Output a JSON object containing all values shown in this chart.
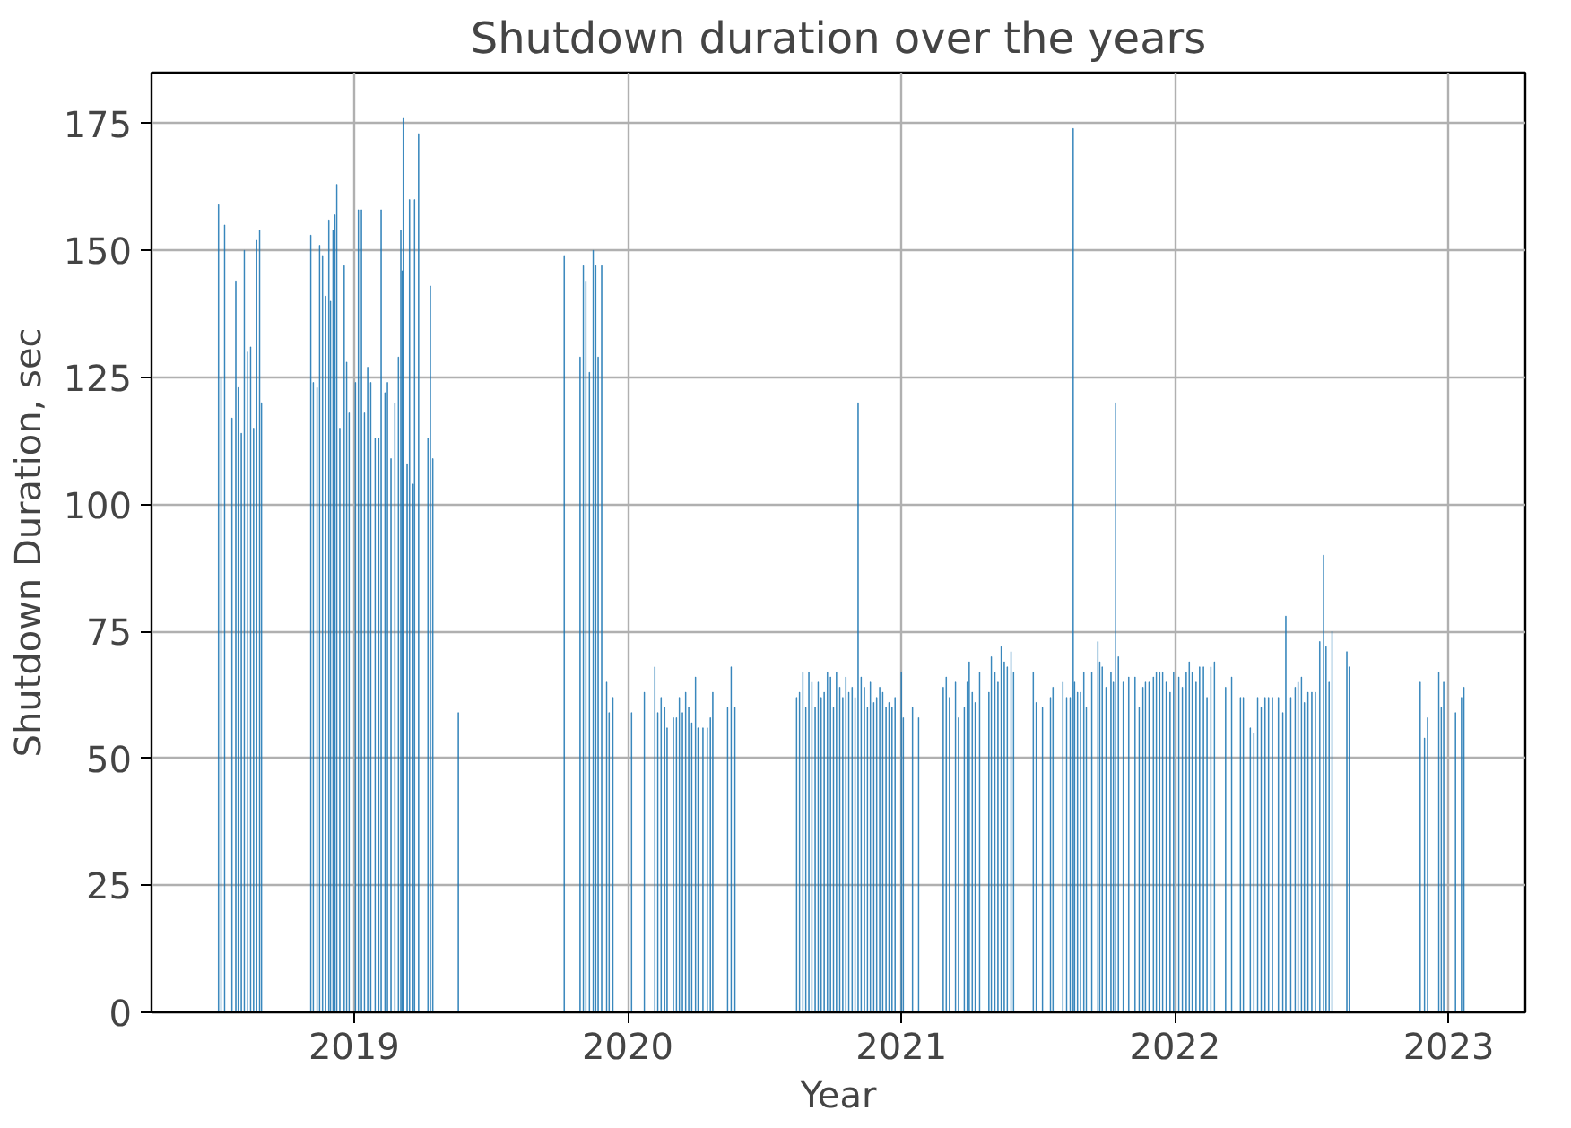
{
  "chart_data": {
    "type": "bar",
    "title": "Shutdown duration over the years",
    "xlabel": "Year",
    "ylabel": "Shutdown Duration, sec",
    "x": [
      2018.505,
      2018.514,
      2018.527,
      2018.554,
      2018.568,
      2018.577,
      2018.588,
      2018.599,
      2018.61,
      2018.622,
      2018.633,
      2018.644,
      2018.655,
      2018.662,
      2018.842,
      2018.851,
      2018.865,
      2018.874,
      2018.885,
      2018.896,
      2018.908,
      2018.914,
      2018.923,
      2018.93,
      2018.937,
      2018.948,
      2018.964,
      2018.973,
      2018.982,
      2019.005,
      2019.016,
      2019.027,
      2019.038,
      2019.05,
      2019.061,
      2019.077,
      2019.09,
      2019.099,
      2019.113,
      2019.122,
      2019.135,
      2019.149,
      2019.162,
      2019.171,
      2019.176,
      2019.18,
      2019.194,
      2019.203,
      2019.216,
      2019.221,
      2019.236,
      2019.27,
      2019.279,
      2019.288,
      2019.381,
      2019.768,
      2019.826,
      2019.838,
      2019.847,
      2019.86,
      2019.874,
      2019.883,
      2019.892,
      2019.905,
      2019.923,
      2019.932,
      2019.946,
      2020.014,
      2020.061,
      2020.099,
      2020.11,
      2020.122,
      2020.135,
      2020.144,
      2020.167,
      2020.178,
      2020.189,
      2020.2,
      2020.212,
      2020.223,
      2020.234,
      2020.248,
      2020.257,
      2020.275,
      2020.291,
      2020.302,
      2020.311,
      2020.365,
      2020.378,
      2020.392,
      2020.617,
      2020.628,
      2020.64,
      2020.651,
      2020.662,
      2020.673,
      2020.685,
      2020.696,
      2020.707,
      2020.718,
      2020.73,
      2020.741,
      2020.752,
      2020.763,
      2020.775,
      2020.786,
      2020.797,
      2020.808,
      2020.82,
      2020.831,
      2020.842,
      2020.853,
      2020.865,
      2020.876,
      2020.887,
      2020.899,
      2020.91,
      2020.921,
      2020.932,
      2020.944,
      2020.955,
      2020.966,
      2020.977,
      2021.0,
      2021.007,
      2021.041,
      2021.063,
      2021.153,
      2021.164,
      2021.176,
      2021.198,
      2021.209,
      2021.23,
      2021.241,
      2021.248,
      2021.259,
      2021.27,
      2021.286,
      2021.32,
      2021.329,
      2021.342,
      2021.353,
      2021.365,
      2021.376,
      2021.387,
      2021.401,
      2021.41,
      2021.482,
      2021.493,
      2021.516,
      2021.545,
      2021.554,
      2021.59,
      2021.604,
      2021.617,
      2021.628,
      2021.633,
      2021.644,
      2021.655,
      2021.667,
      2021.676,
      2021.696,
      2021.718,
      2021.725,
      2021.734,
      2021.748,
      2021.766,
      2021.775,
      2021.782,
      2021.793,
      2021.811,
      2021.831,
      2021.854,
      2021.869,
      2021.883,
      2021.892,
      2021.905,
      2021.921,
      2021.932,
      2021.944,
      2021.955,
      2021.968,
      2021.982,
      2021.995,
      2022.014,
      2022.027,
      2022.041,
      2022.052,
      2022.063,
      2022.077,
      2022.09,
      2022.104,
      2022.117,
      2022.131,
      2022.144,
      2022.185,
      2022.207,
      2022.239,
      2022.25,
      2022.275,
      2022.288,
      2022.302,
      2022.315,
      2022.329,
      2022.342,
      2022.356,
      2022.378,
      2022.394,
      2022.405,
      2022.423,
      2022.439,
      2022.45,
      2022.462,
      2022.473,
      2022.486,
      2022.5,
      2022.513,
      2022.529,
      2022.543,
      2022.552,
      2022.563,
      2022.574,
      2022.628,
      2022.637,
      2022.896,
      2022.912,
      2022.923,
      2022.964,
      2022.973,
      2022.982,
      2023.025,
      2023.047,
      2023.056
    ],
    "values": [
      159,
      125,
      155,
      117,
      144,
      123,
      114,
      150,
      130,
      131,
      115,
      152,
      154,
      120,
      153,
      124,
      123,
      151,
      149,
      141,
      156,
      140,
      154,
      157,
      163,
      115,
      147,
      128,
      118,
      124,
      158,
      158,
      118,
      127,
      124,
      113,
      113,
      158,
      122,
      124,
      109,
      120,
      129,
      154,
      146,
      176,
      108,
      160,
      104,
      160,
      173,
      113,
      143,
      109,
      59,
      149,
      129,
      147,
      144,
      126,
      150,
      147,
      129,
      147,
      65,
      59,
      62,
      59,
      63,
      68,
      59,
      62,
      60,
      56,
      58,
      58,
      62,
      59,
      63,
      60,
      57,
      66,
      56,
      56,
      56,
      58,
      63,
      60,
      68,
      60,
      62,
      63,
      67,
      60,
      67,
      65,
      60,
      65,
      62,
      63,
      67,
      66,
      60,
      67,
      64,
      62,
      66,
      63,
      64,
      62,
      120,
      66,
      64,
      60,
      65,
      61,
      62,
      64,
      63,
      60,
      61,
      60,
      62,
      67,
      58,
      60,
      58,
      64,
      66,
      62,
      65,
      58,
      60,
      65,
      69,
      63,
      61,
      67,
      63,
      70,
      67,
      65,
      72,
      69,
      68,
      71,
      67,
      67,
      61,
      60,
      62,
      64,
      65,
      62,
      62,
      174,
      65,
      63,
      63,
      67,
      60,
      67,
      73,
      69,
      68,
      64,
      67,
      65,
      120,
      70,
      65,
      66,
      66,
      60,
      64,
      65,
      65,
      66,
      67,
      67,
      67,
      65,
      63,
      67,
      66,
      64,
      67,
      69,
      67,
      65,
      68,
      68,
      62,
      68,
      69,
      64,
      66,
      62,
      62,
      56,
      55,
      62,
      60,
      62,
      62,
      62,
      62,
      59,
      78,
      62,
      64,
      65,
      66,
      61,
      63,
      63,
      63,
      73,
      90,
      72,
      65,
      75,
      71,
      68,
      65,
      54,
      58,
      67,
      60,
      65,
      59,
      62,
      64
    ],
    "color": "#1f77b4",
    "xlim": [
      2018.26,
      2023.28
    ],
    "ylim": [
      0,
      185
    ],
    "xticks": [
      2019,
      2020,
      2021,
      2022,
      2023
    ],
    "yticks": [
      0,
      25,
      50,
      75,
      100,
      125,
      150,
      175
    ],
    "grid": true
  }
}
